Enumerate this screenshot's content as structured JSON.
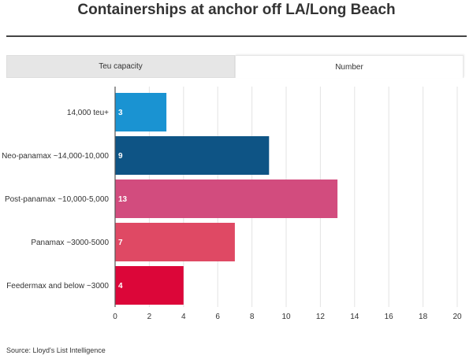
{
  "title": "Containerships at anchor off LA/Long Beach",
  "tabs": [
    {
      "label": "Teu capacity",
      "active": false
    },
    {
      "label": "Number",
      "active": true
    }
  ],
  "source": "Source: Lloyd's List Intelligence",
  "chart_data": {
    "type": "bar",
    "orientation": "horizontal",
    "categories": [
      "14,000 teu+",
      "Neo-panamax ~14,000-10,000",
      "Post-panamax ~10,000-5,000",
      "Panamax ~3000-5000",
      "Feedermax and below ~3000"
    ],
    "values": [
      3,
      9,
      13,
      7,
      4
    ],
    "colors": [
      "#1a93d2",
      "#0e5485",
      "#d24c7e",
      "#df4964",
      "#dc0639"
    ],
    "xlim": [
      0,
      20
    ],
    "xticks": [
      0,
      2,
      4,
      6,
      8,
      10,
      12,
      14,
      16,
      18,
      20
    ],
    "grid": true,
    "data_labels": true
  }
}
